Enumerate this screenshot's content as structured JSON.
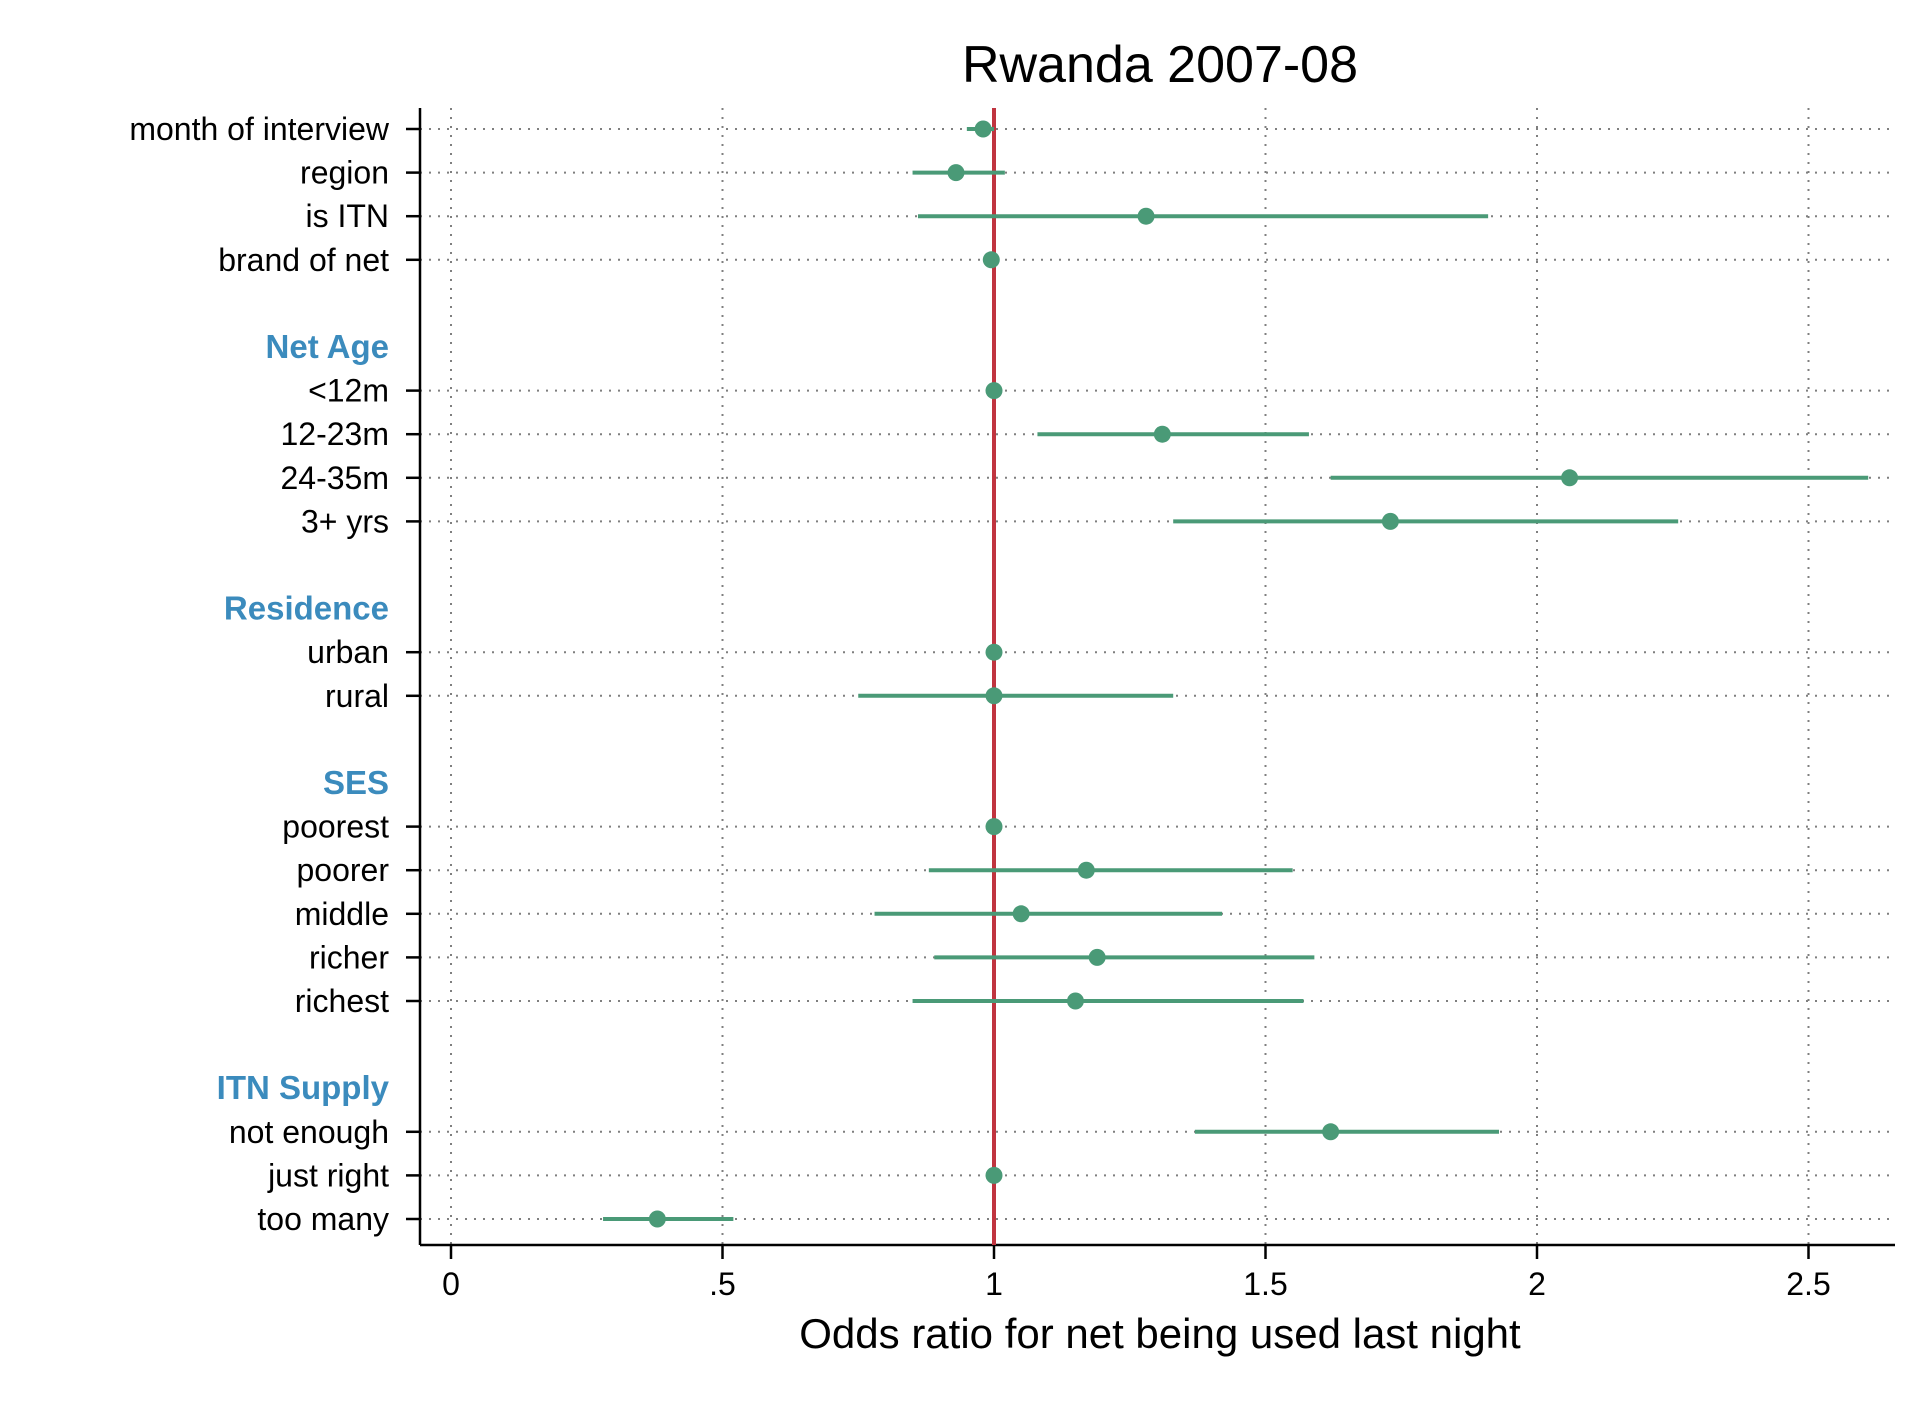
{
  "colors": {
    "point": "#4a9a77",
    "ci": "#4a9a77",
    "reference_line": "#c0343f",
    "group_heading": "#3b8bbd",
    "grid": "#7f7f7f",
    "axis": "#000000"
  },
  "chart_data": {
    "type": "scatter",
    "subtype": "forest-plot",
    "title": "Rwanda 2007-08",
    "xlabel": "Odds ratio for net being used last night",
    "ylabel": "",
    "xlim": [
      -0.05,
      2.65
    ],
    "xticks": [
      0,
      0.5,
      1,
      1.5,
      2,
      2.5
    ],
    "xtick_labels": [
      "0",
      ".5",
      "1",
      "1.5",
      "2",
      "2.5"
    ],
    "reference_line": 1,
    "grid": "dotted",
    "rows": [
      {
        "kind": "item",
        "label": "month of interview",
        "or": 0.98,
        "lo": 0.95,
        "hi": 1.0
      },
      {
        "kind": "item",
        "label": "region",
        "or": 0.93,
        "lo": 0.85,
        "hi": 1.02
      },
      {
        "kind": "item",
        "label": "is ITN",
        "or": 1.28,
        "lo": 0.86,
        "hi": 1.91
      },
      {
        "kind": "item",
        "label": "brand of net",
        "or": 0.995,
        "lo": 0.99,
        "hi": 1.0
      },
      {
        "kind": "spacer"
      },
      {
        "kind": "group",
        "label": "Net Age"
      },
      {
        "kind": "item",
        "label": "<12m",
        "or": 1.0,
        "lo": 1.0,
        "hi": 1.0
      },
      {
        "kind": "item",
        "label": "12-23m",
        "or": 1.31,
        "lo": 1.08,
        "hi": 1.58
      },
      {
        "kind": "item",
        "label": "24-35m",
        "or": 2.06,
        "lo": 1.62,
        "hi": 2.61
      },
      {
        "kind": "item",
        "label": "3+ yrs",
        "or": 1.73,
        "lo": 1.33,
        "hi": 2.26
      },
      {
        "kind": "spacer"
      },
      {
        "kind": "group",
        "label": "Residence"
      },
      {
        "kind": "item",
        "label": "urban",
        "or": 1.0,
        "lo": 1.0,
        "hi": 1.0
      },
      {
        "kind": "item",
        "label": "rural",
        "or": 1.0,
        "lo": 0.75,
        "hi": 1.33
      },
      {
        "kind": "spacer"
      },
      {
        "kind": "group",
        "label": "SES"
      },
      {
        "kind": "item",
        "label": "poorest",
        "or": 1.0,
        "lo": 1.0,
        "hi": 1.0
      },
      {
        "kind": "item",
        "label": "poorer",
        "or": 1.17,
        "lo": 0.88,
        "hi": 1.55
      },
      {
        "kind": "item",
        "label": "middle",
        "or": 1.05,
        "lo": 0.78,
        "hi": 1.42
      },
      {
        "kind": "item",
        "label": "richer",
        "or": 1.19,
        "lo": 0.89,
        "hi": 1.59
      },
      {
        "kind": "item",
        "label": "richest",
        "or": 1.15,
        "lo": 0.85,
        "hi": 1.57
      },
      {
        "kind": "spacer"
      },
      {
        "kind": "group",
        "label": "ITN Supply"
      },
      {
        "kind": "item",
        "label": "not enough",
        "or": 1.62,
        "lo": 1.37,
        "hi": 1.93
      },
      {
        "kind": "item",
        "label": "just right",
        "or": 1.0,
        "lo": 1.0,
        "hi": 1.0
      },
      {
        "kind": "item",
        "label": "too many",
        "or": 0.38,
        "lo": 0.28,
        "hi": 0.52
      }
    ]
  }
}
